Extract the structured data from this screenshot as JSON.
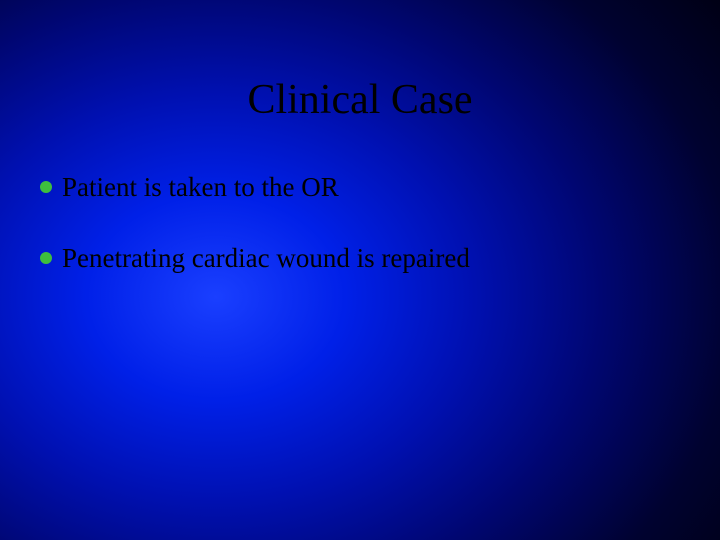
{
  "slide": {
    "title": "Clinical Case",
    "title_color": "#000000",
    "title_fontsize": 42,
    "background_gradient": {
      "type": "radial",
      "center": "30% 55%",
      "stops": [
        "#1a3fff",
        "#0020e8",
        "#0010b0",
        "#000670",
        "#000230",
        "#000010"
      ]
    },
    "bullet_color": "#3ebf3e",
    "text_color": "#000000",
    "body_fontsize": 27,
    "bullets": [
      {
        "text": "Patient is taken to the OR"
      },
      {
        "text": "Penetrating cardiac wound is repaired"
      }
    ]
  }
}
